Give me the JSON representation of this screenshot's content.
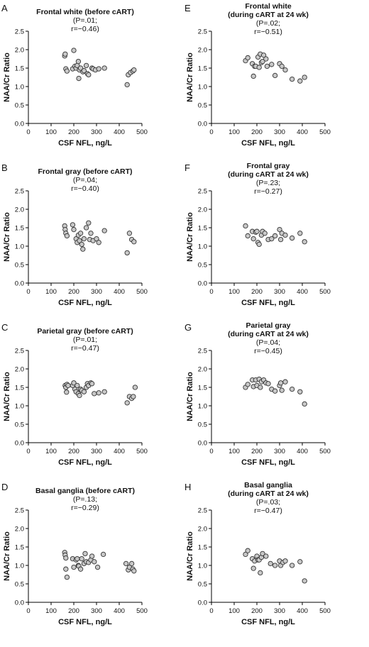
{
  "chart_data": [
    {
      "panel": "A",
      "type": "scatter",
      "title": [
        "Frontal white (before cART)",
        "(P=.01;",
        "r=−0.46)"
      ],
      "xlabel": "CSF NFL, ng/L",
      "ylabel": "NAA/Cr Ratio",
      "xlim": [
        0,
        500
      ],
      "ylim": [
        0,
        2.5
      ],
      "xticks": [
        0,
        100,
        200,
        300,
        400,
        500
      ],
      "yticks": [
        0.0,
        0.5,
        1.0,
        1.5,
        2.0,
        2.5
      ],
      "points": [
        [
          160,
          1.83
        ],
        [
          162,
          1.88
        ],
        [
          165,
          1.48
        ],
        [
          170,
          1.42
        ],
        [
          195,
          1.48
        ],
        [
          200,
          1.98
        ],
        [
          205,
          1.55
        ],
        [
          210,
          1.5
        ],
        [
          215,
          1.57
        ],
        [
          220,
          1.68
        ],
        [
          222,
          1.22
        ],
        [
          225,
          1.45
        ],
        [
          230,
          1.5
        ],
        [
          240,
          1.4
        ],
        [
          245,
          1.43
        ],
        [
          255,
          1.57
        ],
        [
          260,
          1.35
        ],
        [
          265,
          1.32
        ],
        [
          280,
          1.5
        ],
        [
          285,
          1.48
        ],
        [
          295,
          1.45
        ],
        [
          310,
          1.48
        ],
        [
          335,
          1.5
        ],
        [
          435,
          1.05
        ],
        [
          440,
          1.32
        ],
        [
          450,
          1.38
        ],
        [
          460,
          1.42
        ],
        [
          465,
          1.45
        ]
      ]
    },
    {
      "panel": "B",
      "type": "scatter",
      "title": [
        "Frontal gray (before cART)",
        "(P=.04;",
        "r=−0.40)"
      ],
      "xlabel": "CSF NFL, ng/L",
      "ylabel": "NAA/Cr Ratio",
      "xlim": [
        0,
        500
      ],
      "ylim": [
        0,
        2.5
      ],
      "xticks": [
        0,
        100,
        200,
        300,
        400,
        500
      ],
      "yticks": [
        0.0,
        0.5,
        1.0,
        1.5,
        2.0,
        2.5
      ],
      "points": [
        [
          160,
          1.55
        ],
        [
          162,
          1.45
        ],
        [
          165,
          1.35
        ],
        [
          170,
          1.28
        ],
        [
          195,
          1.58
        ],
        [
          200,
          1.45
        ],
        [
          210,
          1.2
        ],
        [
          215,
          1.1
        ],
        [
          220,
          1.3
        ],
        [
          225,
          1.15
        ],
        [
          230,
          1.35
        ],
        [
          235,
          1.05
        ],
        [
          240,
          0.92
        ],
        [
          245,
          1.2
        ],
        [
          255,
          1.5
        ],
        [
          265,
          1.63
        ],
        [
          270,
          1.18
        ],
        [
          275,
          1.35
        ],
        [
          285,
          1.15
        ],
        [
          300,
          1.2
        ],
        [
          310,
          1.1
        ],
        [
          335,
          1.42
        ],
        [
          435,
          0.82
        ],
        [
          445,
          1.35
        ],
        [
          455,
          1.18
        ],
        [
          465,
          1.12
        ]
      ]
    },
    {
      "panel": "C",
      "type": "scatter",
      "title": [
        "Parietal gray (before cART)",
        "(P=.01;",
        "r=−0.47)"
      ],
      "xlabel": "CSF NFL, ng/L",
      "ylabel": "NAA/Cr Ratio",
      "xlim": [
        0,
        500
      ],
      "ylim": [
        0,
        2.5
      ],
      "xticks": [
        0,
        100,
        200,
        300,
        400,
        500
      ],
      "yticks": [
        0.0,
        0.5,
        1.0,
        1.5,
        2.0,
        2.5
      ],
      "points": [
        [
          162,
          1.55
        ],
        [
          165,
          1.5
        ],
        [
          168,
          1.37
        ],
        [
          170,
          1.58
        ],
        [
          175,
          1.55
        ],
        [
          195,
          1.55
        ],
        [
          200,
          1.62
        ],
        [
          205,
          1.45
        ],
        [
          210,
          1.38
        ],
        [
          215,
          1.55
        ],
        [
          220,
          1.33
        ],
        [
          225,
          1.28
        ],
        [
          230,
          1.45
        ],
        [
          235,
          1.42
        ],
        [
          245,
          1.38
        ],
        [
          255,
          1.5
        ],
        [
          260,
          1.6
        ],
        [
          265,
          1.55
        ],
        [
          275,
          1.62
        ],
        [
          280,
          1.6
        ],
        [
          290,
          1.33
        ],
        [
          310,
          1.35
        ],
        [
          335,
          1.38
        ],
        [
          435,
          1.08
        ],
        [
          445,
          1.25
        ],
        [
          455,
          1.2
        ],
        [
          462,
          1.25
        ],
        [
          470,
          1.5
        ]
      ]
    },
    {
      "panel": "D",
      "type": "scatter",
      "title": [
        "Basal ganglia (before cART)",
        "(P=.13;",
        "r=−0.29)"
      ],
      "xlabel": "CSF NFL, ng/L",
      "ylabel": "NAA/Cr Ratio",
      "xlim": [
        0,
        500
      ],
      "ylim": [
        0,
        2.5
      ],
      "xticks": [
        0,
        100,
        200,
        300,
        400,
        500
      ],
      "yticks": [
        0.0,
        0.5,
        1.0,
        1.5,
        2.0,
        2.5
      ],
      "points": [
        [
          160,
          1.35
        ],
        [
          162,
          1.28
        ],
        [
          165,
          1.2
        ],
        [
          165,
          0.9
        ],
        [
          170,
          0.68
        ],
        [
          195,
          1.18
        ],
        [
          200,
          0.95
        ],
        [
          210,
          1.15
        ],
        [
          215,
          1.18
        ],
        [
          220,
          1.0
        ],
        [
          222,
          0.98
        ],
        [
          230,
          0.9
        ],
        [
          235,
          1.18
        ],
        [
          245,
          1.05
        ],
        [
          250,
          1.32
        ],
        [
          255,
          1.1
        ],
        [
          265,
          1.08
        ],
        [
          275,
          1.15
        ],
        [
          280,
          1.25
        ],
        [
          290,
          1.1
        ],
        [
          305,
          0.95
        ],
        [
          330,
          1.3
        ],
        [
          430,
          1.05
        ],
        [
          440,
          0.88
        ],
        [
          445,
          0.95
        ],
        [
          455,
          1.05
        ],
        [
          460,
          0.9
        ],
        [
          465,
          0.85
        ]
      ]
    },
    {
      "panel": "E",
      "type": "scatter",
      "title": [
        "Frontal white",
        "(during cART at 24 wk)",
        "(P=.02;",
        "r=−0.51)"
      ],
      "xlabel": "CSF NFL, ng/L",
      "ylabel": "NAA/Cr Ratio",
      "xlim": [
        0,
        500
      ],
      "ylim": [
        0,
        2.5
      ],
      "xticks": [
        0,
        100,
        200,
        300,
        400,
        500
      ],
      "yticks": [
        0.0,
        0.5,
        1.0,
        1.5,
        2.0,
        2.5
      ],
      "points": [
        [
          150,
          1.7
        ],
        [
          160,
          1.78
        ],
        [
          180,
          1.62
        ],
        [
          185,
          1.28
        ],
        [
          190,
          1.55
        ],
        [
          195,
          1.55
        ],
        [
          205,
          1.8
        ],
        [
          210,
          1.52
        ],
        [
          215,
          1.88
        ],
        [
          220,
          1.65
        ],
        [
          225,
          1.68
        ],
        [
          230,
          1.85
        ],
        [
          240,
          1.75
        ],
        [
          245,
          1.55
        ],
        [
          265,
          1.6
        ],
        [
          280,
          1.3
        ],
        [
          300,
          1.62
        ],
        [
          310,
          1.55
        ],
        [
          325,
          1.45
        ],
        [
          355,
          1.2
        ],
        [
          390,
          1.15
        ],
        [
          410,
          1.25
        ]
      ]
    },
    {
      "panel": "F",
      "type": "scatter",
      "title": [
        "Frontal gray",
        "(during cART at 24 wk)",
        "(P=.23;",
        "r=−0.27)"
      ],
      "xlabel": "CSF NFL, ng/L",
      "ylabel": "NAA/Cr Ratio",
      "xlim": [
        0,
        500
      ],
      "ylim": [
        0,
        2.5
      ],
      "xticks": [
        0,
        100,
        200,
        300,
        400,
        500
      ],
      "yticks": [
        0.0,
        0.5,
        1.0,
        1.5,
        2.0,
        2.5
      ],
      "points": [
        [
          150,
          1.55
        ],
        [
          160,
          1.28
        ],
        [
          180,
          1.4
        ],
        [
          185,
          1.2
        ],
        [
          195,
          1.38
        ],
        [
          200,
          1.4
        ],
        [
          205,
          1.1
        ],
        [
          210,
          1.05
        ],
        [
          220,
          1.3
        ],
        [
          225,
          1.4
        ],
        [
          235,
          1.35
        ],
        [
          250,
          1.18
        ],
        [
          265,
          1.2
        ],
        [
          280,
          1.28
        ],
        [
          300,
          1.45
        ],
        [
          305,
          1.18
        ],
        [
          310,
          1.35
        ],
        [
          325,
          1.3
        ],
        [
          355,
          1.22
        ],
        [
          390,
          1.35
        ],
        [
          410,
          1.12
        ]
      ]
    },
    {
      "panel": "G",
      "type": "scatter",
      "title": [
        "Parietal gray",
        "(during cART at 24 wk)",
        "(P=.04;",
        "r=−0.45)"
      ],
      "xlabel": "CSF NFL, ng/L",
      "ylabel": "NAA/Cr Ratio",
      "xlim": [
        0,
        500
      ],
      "ylim": [
        0,
        2.5
      ],
      "xticks": [
        0,
        100,
        200,
        300,
        400,
        500
      ],
      "yticks": [
        0.0,
        0.5,
        1.0,
        1.5,
        2.0,
        2.5
      ],
      "points": [
        [
          150,
          1.5
        ],
        [
          160,
          1.58
        ],
        [
          180,
          1.7
        ],
        [
          185,
          1.52
        ],
        [
          195,
          1.7
        ],
        [
          200,
          1.55
        ],
        [
          210,
          1.72
        ],
        [
          215,
          1.5
        ],
        [
          220,
          1.65
        ],
        [
          230,
          1.7
        ],
        [
          240,
          1.62
        ],
        [
          250,
          1.6
        ],
        [
          265,
          1.45
        ],
        [
          280,
          1.4
        ],
        [
          300,
          1.55
        ],
        [
          305,
          1.62
        ],
        [
          310,
          1.42
        ],
        [
          325,
          1.65
        ],
        [
          355,
          1.45
        ],
        [
          390,
          1.38
        ],
        [
          410,
          1.05
        ]
      ]
    },
    {
      "panel": "H",
      "type": "scatter",
      "title": [
        "Basal ganglia",
        "(during cART at 24 wk)",
        "(P=.03;",
        "r=−0.47)"
      ],
      "xlabel": "CSF NFL, ng/L",
      "ylabel": "NAA/Cr Ratio",
      "xlim": [
        0,
        500
      ],
      "ylim": [
        0,
        2.5
      ],
      "xticks": [
        0,
        100,
        200,
        300,
        400,
        500
      ],
      "yticks": [
        0.0,
        0.5,
        1.0,
        1.5,
        2.0,
        2.5
      ],
      "points": [
        [
          150,
          1.3
        ],
        [
          160,
          1.4
        ],
        [
          180,
          1.18
        ],
        [
          185,
          0.92
        ],
        [
          190,
          1.12
        ],
        [
          200,
          1.25
        ],
        [
          205,
          1.15
        ],
        [
          210,
          1.15
        ],
        [
          215,
          0.8
        ],
        [
          220,
          1.22
        ],
        [
          225,
          1.32
        ],
        [
          240,
          1.25
        ],
        [
          260,
          1.05
        ],
        [
          280,
          1.0
        ],
        [
          300,
          1.12
        ],
        [
          305,
          1.0
        ],
        [
          315,
          1.08
        ],
        [
          325,
          1.12
        ],
        [
          355,
          1.0
        ],
        [
          390,
          1.1
        ],
        [
          410,
          0.58
        ]
      ]
    }
  ]
}
